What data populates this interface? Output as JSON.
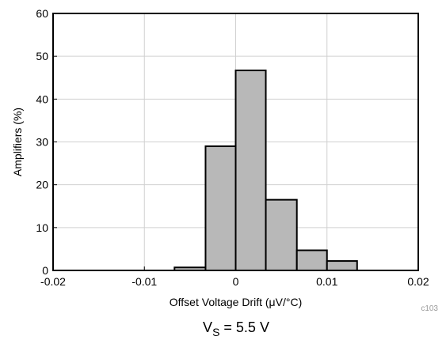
{
  "chart_data": {
    "type": "bar",
    "title": "",
    "xlabel": "Offset Voltage Drift (μV/°C)",
    "ylabel": "Amplifiers (%)",
    "xlim": [
      -0.02,
      0.02
    ],
    "ylim": [
      0,
      60
    ],
    "xticks": [
      -0.02,
      -0.01,
      0,
      0.01,
      0.02
    ],
    "xtick_labels": [
      "-0.02",
      "-0.01",
      "0",
      "0.01",
      "0.02"
    ],
    "yticks": [
      0,
      10,
      20,
      30,
      40,
      50,
      60
    ],
    "ytick_labels": [
      "0",
      "10",
      "20",
      "30",
      "40",
      "50",
      "60"
    ],
    "grid": true,
    "bin_edges": [
      -0.0067,
      -0.0033,
      0.0,
      0.0033,
      0.0067,
      0.01,
      0.0133
    ],
    "values": [
      0.7,
      29,
      46.7,
      16.5,
      4.7,
      2.2
    ],
    "bar_color": "#b8b8b8",
    "annotations": {
      "code": "c103",
      "condition_prefix": "V",
      "condition_subscript": "S",
      "condition_suffix": " = 5.5 V"
    }
  }
}
